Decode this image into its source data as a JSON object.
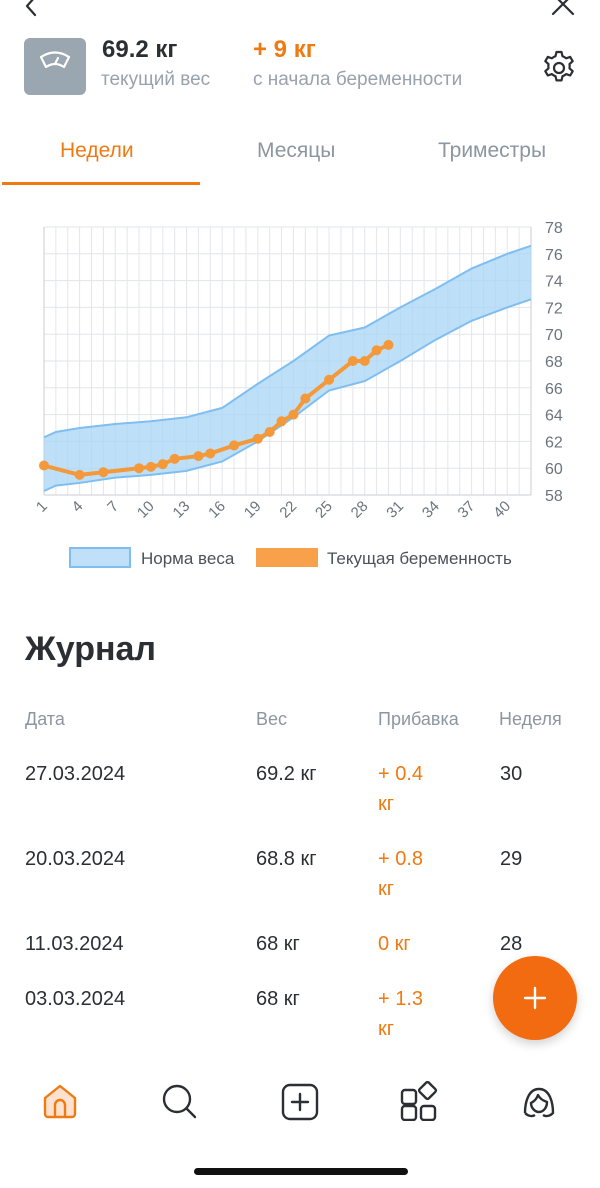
{
  "nav": {
    "back_icon": "chevron-left-icon",
    "close_icon": "close-icon"
  },
  "header": {
    "current_weight": "69.2 кг",
    "current_weight_label": "текущий вес",
    "gain": "+ 9 кг",
    "gain_label": "с начала беременности",
    "scale_icon": "scale-icon",
    "settings_icon": "gear-icon"
  },
  "tabs": [
    {
      "label": "Недели",
      "active": true
    },
    {
      "label": "Месяцы",
      "active": false
    },
    {
      "label": "Триместры",
      "active": false
    }
  ],
  "chart_data": {
    "type": "area",
    "x_ticks": [
      1,
      4,
      7,
      10,
      13,
      16,
      19,
      22,
      25,
      28,
      31,
      34,
      37,
      40
    ],
    "y_ticks": [
      58,
      60,
      62,
      64,
      66,
      68,
      70,
      72,
      74,
      76,
      78
    ],
    "xlim": [
      1,
      42
    ],
    "ylim": [
      58,
      78
    ],
    "grid": true,
    "legend_position": "bottom",
    "series": [
      {
        "name": "Норма веса",
        "kind": "band",
        "color": "#a8d4f5",
        "x": [
          1,
          2,
          4,
          7,
          10,
          13,
          16,
          19,
          22,
          25,
          28,
          31,
          34,
          37,
          40,
          42
        ],
        "lower": [
          58.3,
          58.7,
          58.9,
          59.3,
          59.5,
          59.8,
          60.5,
          62.0,
          63.8,
          65.8,
          66.5,
          68.0,
          69.6,
          71.0,
          72.0,
          72.6
        ],
        "upper": [
          62.3,
          62.7,
          63.0,
          63.3,
          63.5,
          63.8,
          64.5,
          66.3,
          68.0,
          69.9,
          70.5,
          72.0,
          73.4,
          74.9,
          76.0,
          76.6
        ]
      },
      {
        "name": "Текущая беременность",
        "kind": "line",
        "color": "#f4993a",
        "x": [
          1,
          4,
          6,
          9,
          10,
          11,
          12,
          14,
          15,
          17,
          19,
          20,
          21,
          22,
          23,
          25,
          27,
          28,
          29,
          30
        ],
        "y": [
          60.2,
          59.5,
          59.7,
          60.0,
          60.1,
          60.3,
          60.7,
          60.9,
          61.1,
          61.7,
          62.2,
          62.7,
          63.5,
          64.0,
          65.2,
          66.6,
          68.0,
          68.0,
          68.8,
          69.2
        ]
      }
    ]
  },
  "journal": {
    "title": "Журнал",
    "columns": [
      "Дата",
      "Вес",
      "Прибавка",
      "Неделя"
    ],
    "rows": [
      {
        "date": "27.03.2024",
        "weight": "69.2 кг",
        "gain_1": "+ 0.4",
        "gain_2": "кг",
        "week": "30"
      },
      {
        "date": "20.03.2024",
        "weight": "68.8 кг",
        "gain_1": "+ 0.8",
        "gain_2": "кг",
        "week": "29"
      },
      {
        "date": "11.03.2024",
        "weight": "68 кг",
        "gain_1": "0 кг",
        "gain_2": "",
        "week": "28"
      },
      {
        "date": "03.03.2024",
        "weight": "68 кг",
        "gain_1": "+ 1.3",
        "gain_2": "кг",
        "week": ""
      }
    ]
  },
  "fab": {
    "icon": "plus-icon",
    "color": "#f26b10"
  },
  "tabbar": {
    "items": [
      {
        "icon": "home-icon",
        "active": true
      },
      {
        "icon": "search-icon",
        "active": false
      },
      {
        "icon": "add-square-icon",
        "active": false
      },
      {
        "icon": "apps-grid-icon",
        "active": false
      },
      {
        "icon": "profile-icon",
        "active": false
      }
    ]
  },
  "colors": {
    "accent": "#f07a12",
    "muted": "#8c96a1",
    "text": "#2b2f33"
  }
}
